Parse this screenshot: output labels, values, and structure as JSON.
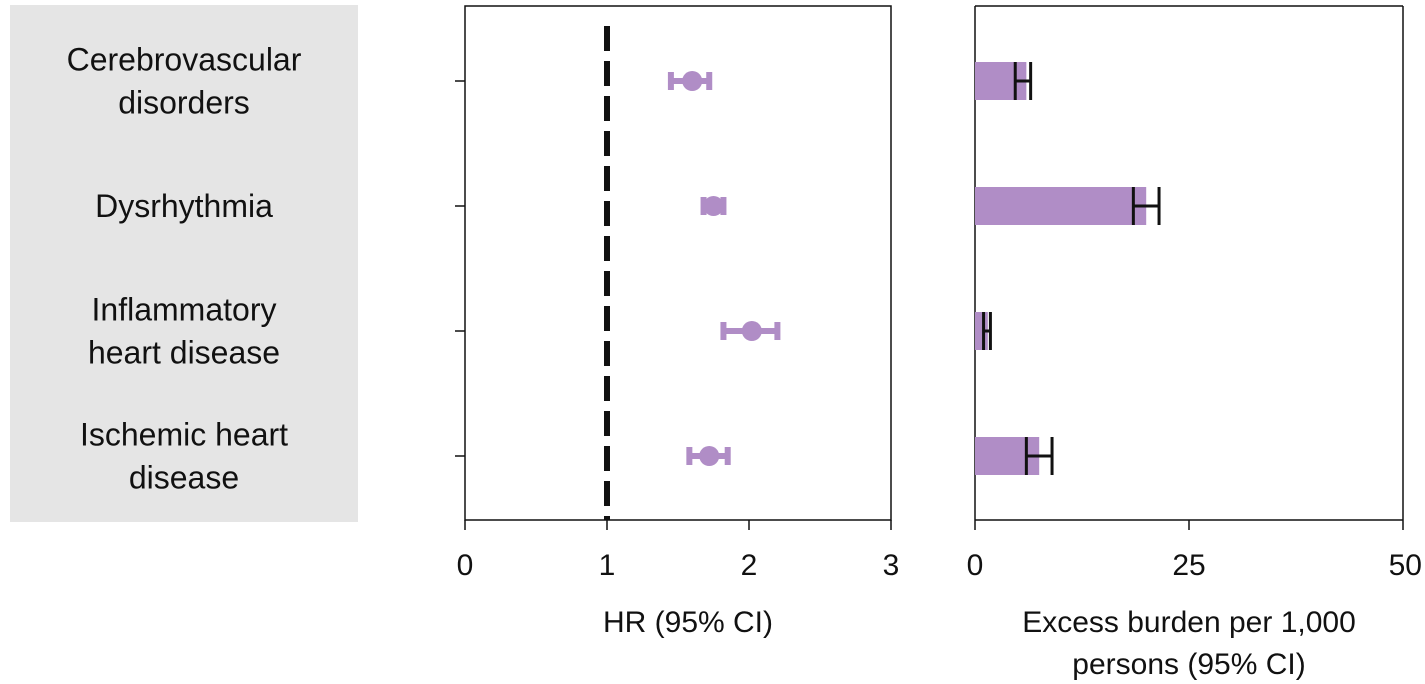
{
  "chart_data": [
    {
      "type": "scatter",
      "panel": "hazard-ratio",
      "categories": [
        [
          "Cerebrovascular",
          "disorders"
        ],
        [
          "Dysrhythmia"
        ],
        [
          "Inflammatory",
          "heart disease"
        ],
        [
          "Ischemic heart",
          "disease"
        ]
      ],
      "points": [
        {
          "hr": 1.6,
          "ci": [
            1.45,
            1.72
          ]
        },
        {
          "hr": 1.75,
          "ci": [
            1.68,
            1.82
          ]
        },
        {
          "hr": 2.02,
          "ci": [
            1.82,
            2.2
          ]
        },
        {
          "hr": 1.72,
          "ci": [
            1.58,
            1.85
          ]
        }
      ],
      "xticks": [
        0,
        1,
        2,
        3
      ],
      "xlim": [
        0,
        3
      ],
      "reference_line": 1,
      "xlabel": "HR (95% CI)",
      "color": "#b08dc6"
    },
    {
      "type": "bar",
      "panel": "excess-burden",
      "values": [
        6.0,
        20.0,
        1.5,
        7.5
      ],
      "ci": [
        [
          4.7,
          6.5
        ],
        [
          18.5,
          21.5
        ],
        [
          1.0,
          1.8
        ],
        [
          6.0,
          9.0
        ]
      ],
      "xticks": [
        0,
        25,
        50
      ],
      "xlim": [
        0,
        50
      ],
      "xlabel": [
        "Excess burden per 1,000",
        "persons (95% CI)"
      ],
      "color": "#b08dc6"
    }
  ]
}
